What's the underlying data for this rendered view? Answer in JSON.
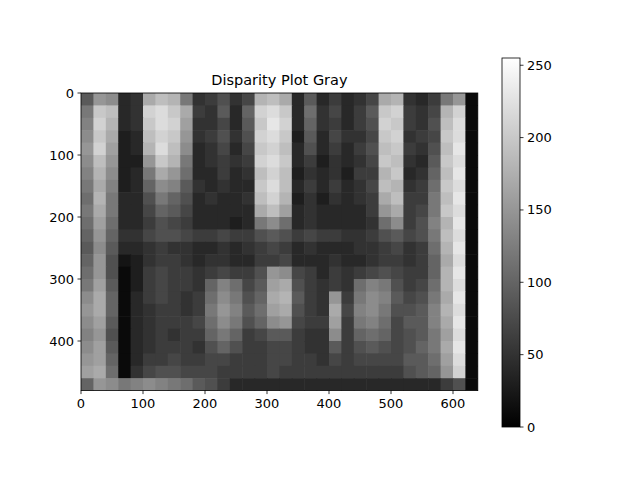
{
  "chart_data": {
    "type": "heatmap",
    "title": "Disparity Plot Gray",
    "xlim": [
      0,
      640
    ],
    "ylim": [
      480,
      0
    ],
    "xticks": [
      0,
      100,
      200,
      300,
      400,
      500,
      600
    ],
    "yticks": [
      0,
      100,
      200,
      300,
      400
    ],
    "color": "gray",
    "color_range": [
      0,
      255
    ],
    "color_ticks": [
      0,
      50,
      100,
      150,
      200,
      250
    ],
    "cells": [
      [
        90,
        150,
        140,
        40,
        50,
        170,
        190,
        180,
        120,
        50,
        60,
        80,
        50,
        70,
        180,
        190,
        170,
        40,
        90,
        40,
        60,
        40,
        50,
        70,
        170,
        180,
        50,
        40,
        60,
        120,
        150,
        10
      ],
      [
        120,
        200,
        190,
        40,
        50,
        210,
        220,
        200,
        170,
        60,
        50,
        90,
        40,
        100,
        210,
        220,
        200,
        40,
        110,
        50,
        70,
        40,
        60,
        90,
        200,
        210,
        60,
        50,
        70,
        180,
        210,
        10
      ],
      [
        130,
        210,
        180,
        40,
        50,
        200,
        220,
        210,
        160,
        50,
        50,
        70,
        40,
        90,
        200,
        230,
        210,
        40,
        100,
        50,
        60,
        40,
        60,
        80,
        210,
        200,
        60,
        50,
        80,
        190,
        220,
        10
      ],
      [
        140,
        200,
        170,
        30,
        40,
        190,
        210,
        200,
        150,
        50,
        60,
        80,
        50,
        80,
        210,
        220,
        200,
        30,
        90,
        40,
        70,
        50,
        50,
        70,
        200,
        210,
        50,
        60,
        70,
        200,
        220,
        10
      ],
      [
        150,
        210,
        160,
        30,
        40,
        180,
        220,
        190,
        140,
        40,
        50,
        70,
        40,
        70,
        200,
        210,
        190,
        40,
        80,
        40,
        60,
        40,
        60,
        80,
        190,
        200,
        60,
        50,
        80,
        190,
        230,
        10
      ],
      [
        140,
        190,
        150,
        30,
        30,
        150,
        200,
        180,
        120,
        40,
        50,
        60,
        50,
        60,
        210,
        220,
        200,
        40,
        60,
        30,
        50,
        40,
        50,
        70,
        200,
        190,
        50,
        40,
        90,
        200,
        220,
        10
      ],
      [
        130,
        180,
        140,
        30,
        40,
        120,
        170,
        150,
        110,
        40,
        40,
        60,
        40,
        50,
        190,
        210,
        190,
        30,
        50,
        40,
        50,
        30,
        60,
        60,
        180,
        200,
        40,
        50,
        100,
        190,
        230,
        10
      ],
      [
        120,
        170,
        130,
        30,
        40,
        100,
        140,
        130,
        90,
        50,
        40,
        50,
        40,
        40,
        200,
        220,
        190,
        40,
        60,
        40,
        60,
        40,
        50,
        70,
        190,
        180,
        50,
        60,
        110,
        200,
        220,
        10
      ],
      [
        110,
        180,
        120,
        40,
        40,
        80,
        120,
        100,
        80,
        40,
        50,
        40,
        40,
        50,
        190,
        210,
        180,
        30,
        50,
        30,
        50,
        40,
        50,
        60,
        170,
        190,
        60,
        60,
        120,
        190,
        230,
        10
      ],
      [
        120,
        170,
        120,
        40,
        40,
        70,
        100,
        90,
        70,
        40,
        40,
        40,
        40,
        40,
        170,
        190,
        160,
        40,
        50,
        40,
        40,
        40,
        40,
        60,
        150,
        170,
        60,
        70,
        120,
        200,
        220,
        10
      ],
      [
        110,
        160,
        110,
        40,
        40,
        60,
        80,
        70,
        60,
        40,
        40,
        40,
        30,
        40,
        120,
        140,
        110,
        40,
        50,
        40,
        40,
        40,
        40,
        50,
        110,
        140,
        60,
        80,
        130,
        180,
        230,
        10
      ],
      [
        100,
        150,
        100,
        50,
        50,
        70,
        80,
        80,
        70,
        60,
        60,
        70,
        60,
        60,
        80,
        90,
        80,
        60,
        70,
        60,
        60,
        50,
        50,
        60,
        80,
        90,
        70,
        80,
        120,
        190,
        220,
        10
      ],
      [
        90,
        140,
        90,
        40,
        40,
        50,
        60,
        50,
        50,
        40,
        40,
        50,
        40,
        50,
        60,
        70,
        60,
        40,
        50,
        40,
        40,
        40,
        50,
        50,
        60,
        70,
        50,
        60,
        110,
        180,
        230,
        10
      ],
      [
        100,
        150,
        80,
        20,
        30,
        50,
        60,
        60,
        50,
        40,
        50,
        50,
        40,
        40,
        60,
        60,
        70,
        40,
        40,
        40,
        50,
        40,
        40,
        50,
        60,
        60,
        50,
        60,
        100,
        170,
        220,
        10
      ],
      [
        110,
        150,
        80,
        10,
        30,
        60,
        70,
        60,
        60,
        50,
        60,
        70,
        60,
        60,
        80,
        150,
        140,
        70,
        60,
        40,
        60,
        50,
        60,
        70,
        80,
        70,
        60,
        60,
        100,
        180,
        230,
        10
      ],
      [
        120,
        160,
        90,
        10,
        30,
        60,
        70,
        60,
        60,
        50,
        100,
        130,
        110,
        70,
        90,
        160,
        170,
        80,
        60,
        50,
        60,
        50,
        110,
        130,
        120,
        80,
        60,
        70,
        110,
        180,
        220,
        10
      ],
      [
        140,
        170,
        100,
        10,
        40,
        60,
        70,
        60,
        50,
        60,
        110,
        140,
        120,
        80,
        100,
        170,
        180,
        90,
        60,
        50,
        150,
        60,
        120,
        140,
        130,
        90,
        70,
        80,
        120,
        170,
        230,
        10
      ],
      [
        150,
        170,
        100,
        10,
        40,
        50,
        60,
        60,
        50,
        60,
        120,
        150,
        130,
        90,
        110,
        160,
        170,
        80,
        60,
        50,
        170,
        70,
        130,
        140,
        120,
        80,
        80,
        90,
        130,
        180,
        220,
        10
      ],
      [
        140,
        160,
        90,
        10,
        40,
        50,
        60,
        60,
        60,
        70,
        110,
        140,
        120,
        80,
        100,
        140,
        150,
        70,
        60,
        60,
        160,
        60,
        120,
        130,
        110,
        70,
        90,
        90,
        130,
        170,
        230,
        10
      ],
      [
        130,
        150,
        80,
        10,
        40,
        50,
        60,
        50,
        60,
        60,
        100,
        120,
        100,
        60,
        70,
        90,
        90,
        60,
        50,
        50,
        140,
        60,
        100,
        110,
        100,
        70,
        80,
        90,
        120,
        160,
        220,
        10
      ],
      [
        140,
        160,
        90,
        10,
        40,
        50,
        60,
        60,
        60,
        50,
        80,
        100,
        80,
        60,
        60,
        70,
        70,
        60,
        50,
        50,
        90,
        60,
        80,
        90,
        80,
        70,
        80,
        100,
        120,
        170,
        230,
        10
      ],
      [
        150,
        160,
        100,
        10,
        40,
        60,
        60,
        70,
        60,
        60,
        70,
        70,
        60,
        60,
        60,
        70,
        70,
        60,
        60,
        50,
        70,
        60,
        70,
        70,
        70,
        70,
        90,
        90,
        110,
        160,
        220,
        10
      ],
      [
        160,
        170,
        110,
        10,
        50,
        70,
        80,
        80,
        70,
        70,
        70,
        60,
        60,
        60,
        60,
        70,
        60,
        60,
        60,
        60,
        60,
        60,
        60,
        60,
        60,
        60,
        80,
        90,
        100,
        150,
        210,
        10
      ],
      [
        100,
        150,
        140,
        120,
        130,
        140,
        130,
        120,
        110,
        90,
        80,
        60,
        40,
        40,
        40,
        40,
        40,
        40,
        40,
        40,
        40,
        40,
        40,
        40,
        40,
        40,
        40,
        40,
        40,
        60,
        80,
        10
      ]
    ]
  }
}
